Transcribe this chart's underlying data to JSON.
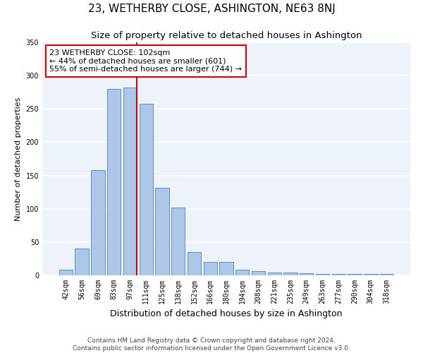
{
  "title": "23, WETHERBY CLOSE, ASHINGTON, NE63 8NJ",
  "subtitle": "Size of property relative to detached houses in Ashington",
  "xlabel": "Distribution of detached houses by size in Ashington",
  "ylabel": "Number of detached properties",
  "categories": [
    "42sqm",
    "56sqm",
    "69sqm",
    "83sqm",
    "97sqm",
    "111sqm",
    "125sqm",
    "138sqm",
    "152sqm",
    "166sqm",
    "180sqm",
    "194sqm",
    "208sqm",
    "221sqm",
    "235sqm",
    "249sqm",
    "263sqm",
    "277sqm",
    "290sqm",
    "304sqm",
    "318sqm"
  ],
  "values": [
    8,
    40,
    158,
    280,
    282,
    258,
    132,
    102,
    35,
    20,
    20,
    8,
    6,
    4,
    4,
    3,
    2,
    2,
    2,
    2,
    2
  ],
  "bar_color": "#aec6e8",
  "bar_edge_color": "#5a8fc2",
  "bar_edge_width": 0.7,
  "background_color": "#eef2fb",
  "grid_color": "#ffffff",
  "property_line_color": "#cc0000",
  "annotation_text": "23 WETHERBY CLOSE: 102sqm\n← 44% of detached houses are smaller (601)\n55% of semi-detached houses are larger (744) →",
  "annotation_box_color": "#ffffff",
  "annotation_box_edge": "#cc0000",
  "ylim": [
    0,
    350
  ],
  "yticks": [
    0,
    50,
    100,
    150,
    200,
    250,
    300,
    350
  ],
  "footer1": "Contains HM Land Registry data © Crown copyright and database right 2024.",
  "footer2": "Contains public sector information licensed under the Open Government Licence v3.0.",
  "title_fontsize": 11,
  "subtitle_fontsize": 9.5,
  "xlabel_fontsize": 9,
  "ylabel_fontsize": 8,
  "tick_fontsize": 7,
  "annotation_fontsize": 8,
  "footer_fontsize": 6.5
}
